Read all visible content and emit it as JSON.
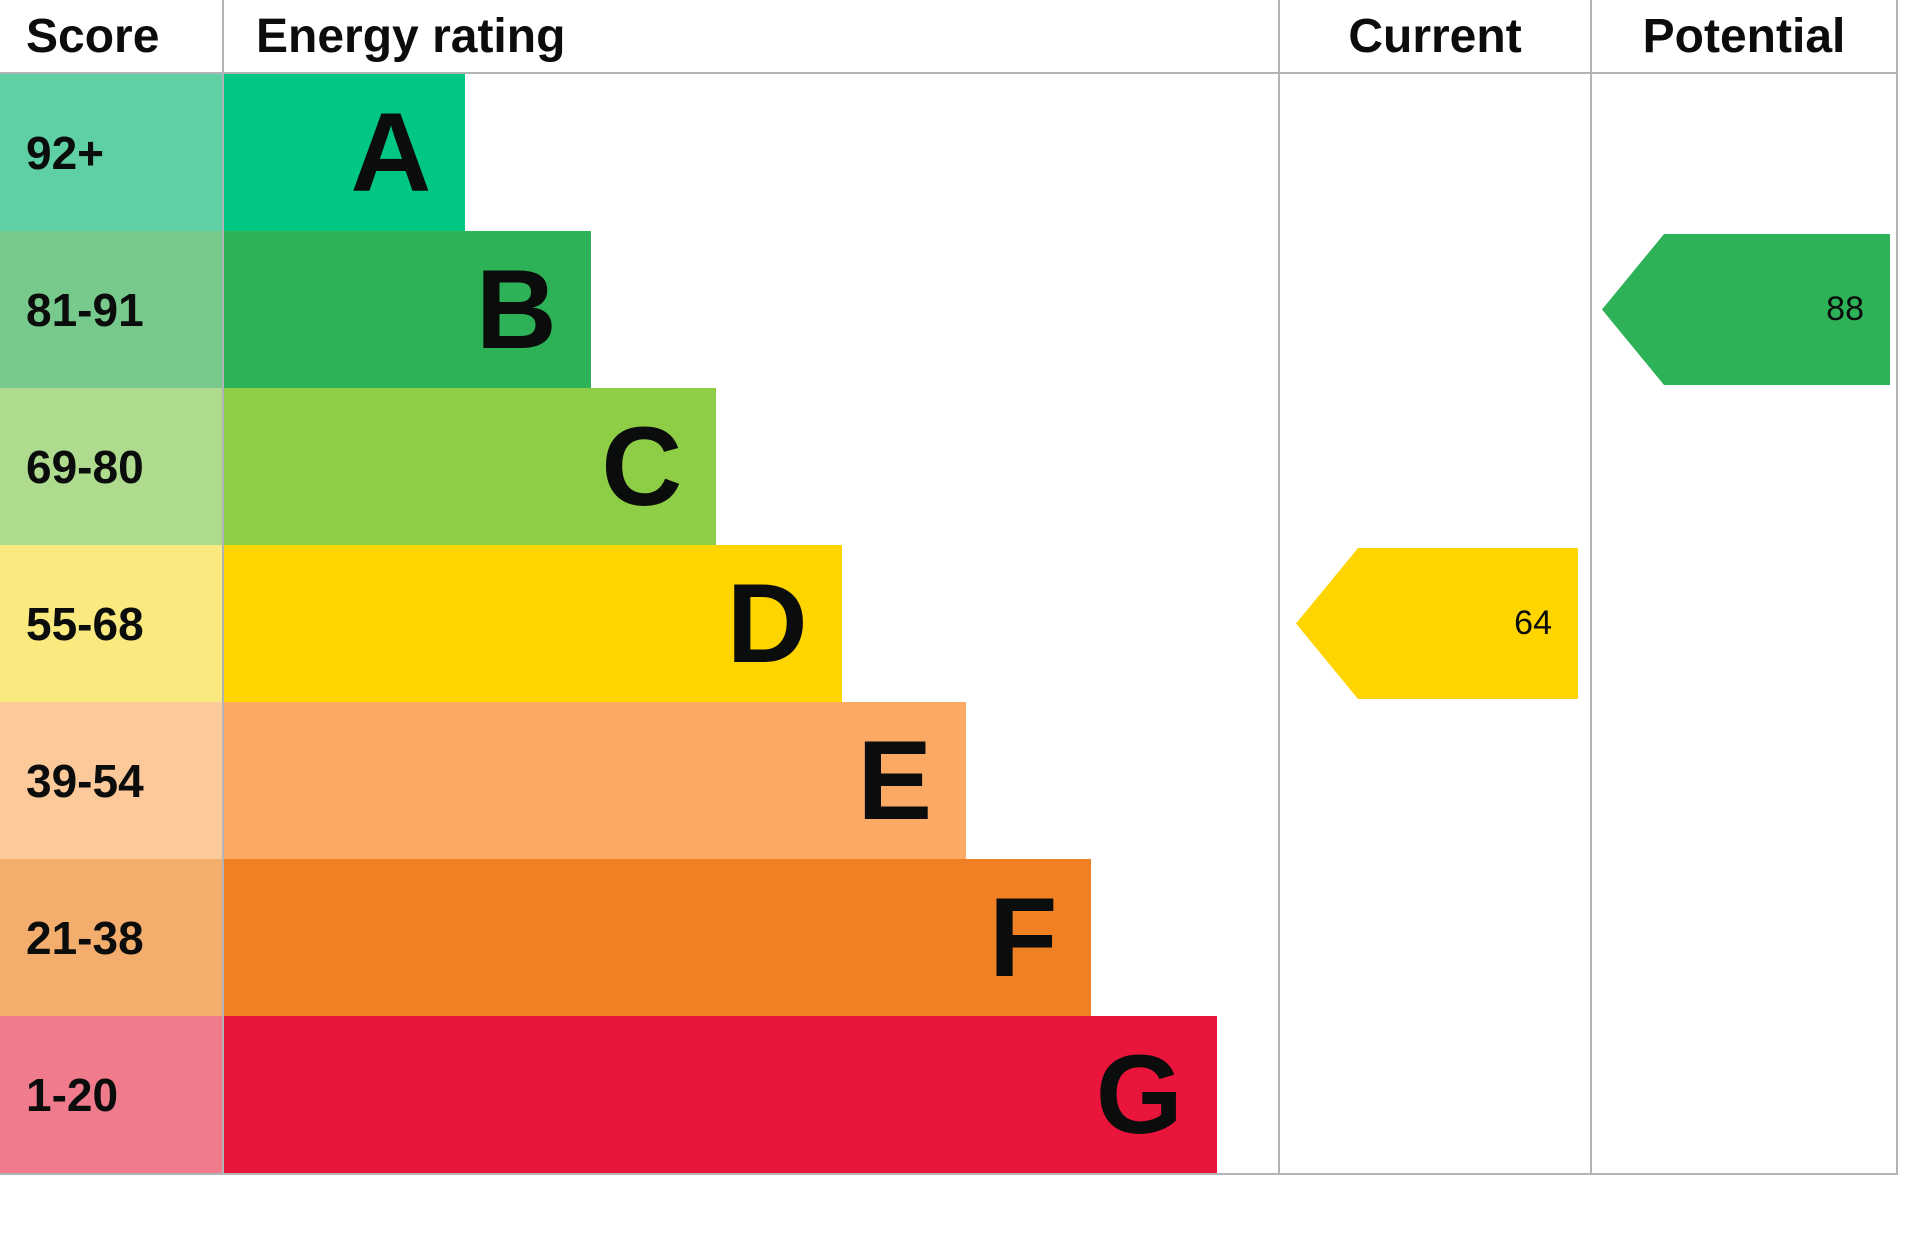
{
  "header": {
    "score": "Score",
    "energy_rating": "Energy rating",
    "current": "Current",
    "potential": "Potential"
  },
  "chart_data": {
    "type": "bar",
    "title": "EPC energy efficiency rating chart",
    "columns": [
      "Score",
      "Energy rating",
      "Current",
      "Potential"
    ],
    "bands": [
      {
        "score": "92+",
        "letter": "A",
        "color": "#00c781",
        "score_bg": "#5fcfa4",
        "width_pct": 22.9
      },
      {
        "score": "81-91",
        "letter": "B",
        "color": "#2eb258",
        "score_bg": "#77c98c",
        "width_pct": 34.8
      },
      {
        "score": "69-80",
        "letter": "C",
        "color": "#8dce46",
        "score_bg": "#aedb8e",
        "width_pct": 46.7
      },
      {
        "score": "55-68",
        "letter": "D",
        "color": "#ffd500",
        "score_bg": "#fae97e",
        "width_pct": 58.6
      },
      {
        "score": "39-54",
        "letter": "E",
        "color": "#fbaa65",
        "score_bg": "#fcc99b",
        "width_pct": 70.4
      },
      {
        "score": "21-38",
        "letter": "F",
        "color": "#ef8023",
        "score_bg": "#f3ad6d",
        "width_pct": 82.3
      },
      {
        "score": "1-20",
        "letter": "G",
        "color": "#e9153b",
        "score_bg": "#ef7b8d",
        "width_pct": 94.2
      }
    ],
    "current": {
      "value": "64",
      "band_index": 3,
      "band": "D",
      "color": "#ffd500"
    },
    "potential": {
      "value": "88",
      "band_index": 1,
      "band": "B",
      "color": "#2eb258"
    }
  }
}
